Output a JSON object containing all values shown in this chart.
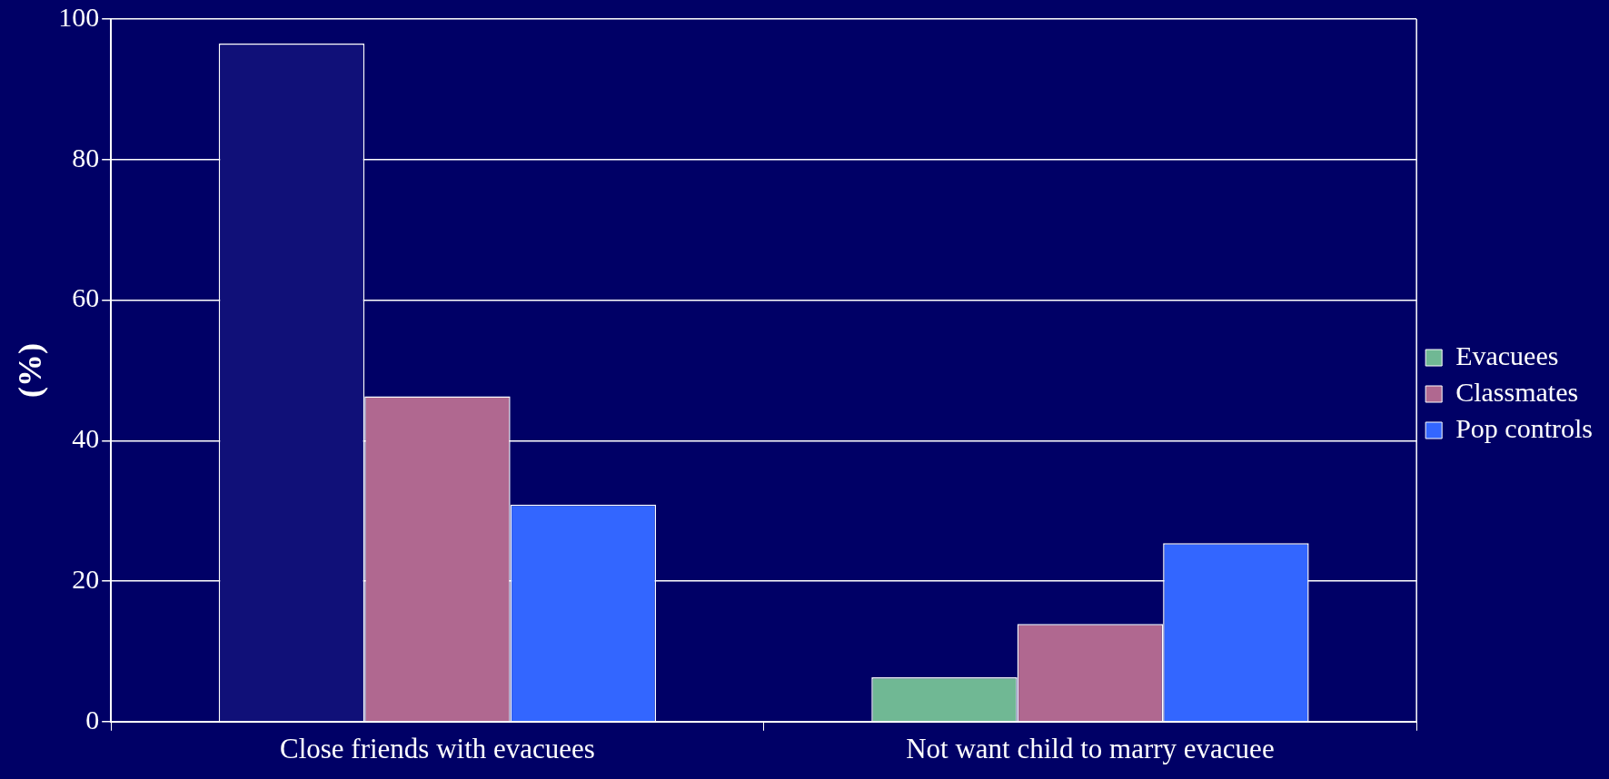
{
  "chart_data": {
    "type": "bar",
    "ylabel": "(%)",
    "categories": [
      "Close friends with evacuees",
      "Not want child to marry evacuee"
    ],
    "series": [
      {
        "name": "Evacuees",
        "color": "#70b894",
        "colors": [
          "#101078",
          "#70b894"
        ],
        "values": [
          96.5,
          6.3
        ]
      },
      {
        "name": "Classmates",
        "color": "#b06890",
        "values": [
          46.3,
          13.9
        ]
      },
      {
        "name": "Pop controls",
        "color": "#3366ff",
        "values": [
          30.9,
          25.4
        ]
      }
    ],
    "ylim": [
      0,
      100
    ],
    "yticks": [
      0,
      20,
      40,
      60,
      80,
      100
    ],
    "grid": "y",
    "legend": "right"
  }
}
